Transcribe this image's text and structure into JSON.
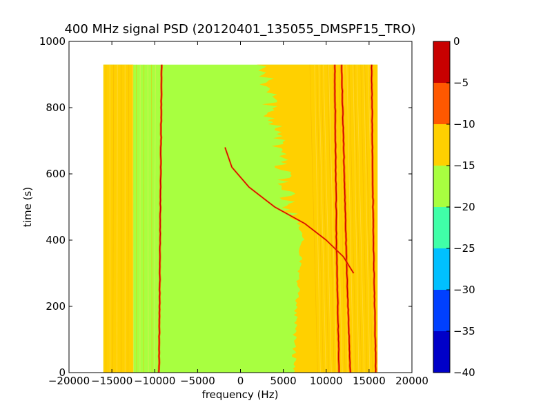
{
  "chart_data": {
    "type": "heatmap",
    "title": "400 MHz signal PSD (20120401_135055_DMSPF15_TRO)",
    "xlabel": "frequency (Hz)",
    "ylabel": "time (s)",
    "xlim": [
      -20000,
      20000
    ],
    "ylim": [
      0,
      1000
    ],
    "xticks": [
      -20000,
      -15000,
      -10000,
      -5000,
      0,
      5000,
      10000,
      15000,
      20000
    ],
    "xtick_labels": [
      "−20000",
      "−15000",
      "−10000",
      "−5000",
      "0",
      "5000",
      "10000",
      "15000",
      "20000"
    ],
    "yticks": [
      0,
      200,
      400,
      600,
      800,
      1000
    ],
    "ytick_labels": [
      "0",
      "200",
      "400",
      "600",
      "800",
      "1000"
    ],
    "data_extent": {
      "freq": [
        -16000,
        16000
      ],
      "time": [
        0,
        930
      ]
    },
    "background_level": "-20 to -15",
    "colorbar": {
      "levels": [
        -40,
        -35,
        -30,
        -25,
        -20,
        -15,
        -10,
        -5,
        0
      ],
      "level_labels": [
        "−40",
        "−35",
        "−30",
        "−25",
        "−20",
        "−15",
        "−10",
        "−5",
        "0"
      ],
      "colors": [
        "#0000c8",
        "#0040ff",
        "#00c0ff",
        "#40ffa8",
        "#a8ff40",
        "#ffd000",
        "#ff5800",
        "#c80000"
      ]
    },
    "features": [
      {
        "name": "band-left",
        "level": "-15 to -10",
        "freq_range": [
          -16000,
          -12500
        ],
        "time_range": [
          0,
          930
        ]
      },
      {
        "name": "band-right",
        "level": "-15 to -10",
        "freq_at_time": [
          [
            0,
            6500
          ],
          [
            200,
            6800
          ],
          [
            400,
            7500
          ],
          [
            600,
            6000
          ],
          [
            800,
            4500
          ],
          [
            930,
            4000
          ]
        ],
        "freq_max": 16000
      },
      {
        "name": "line-left",
        "level": "-5 to 0",
        "freq_at_time": [
          [
            0,
            -9500
          ],
          [
            930,
            -9200
          ]
        ]
      },
      {
        "name": "line-right-1",
        "level": "-5 to 0",
        "freq_at_time": [
          [
            0,
            11500
          ],
          [
            400,
            11200
          ],
          [
            930,
            11000
          ]
        ]
      },
      {
        "name": "line-right-2",
        "level": "-5 to 0",
        "freq_at_time": [
          [
            0,
            12800
          ],
          [
            400,
            12300
          ],
          [
            930,
            11800
          ]
        ]
      },
      {
        "name": "line-right-3",
        "level": "-5 to 0",
        "freq_at_time": [
          [
            0,
            15800
          ],
          [
            400,
            15500
          ],
          [
            930,
            15300
          ]
        ]
      },
      {
        "name": "sweep",
        "level": "-5 to 0",
        "freq_at_time": [
          [
            680,
            -1800
          ],
          [
            620,
            -1000
          ],
          [
            560,
            1000
          ],
          [
            500,
            4000
          ],
          [
            450,
            7500
          ],
          [
            400,
            10000
          ],
          [
            350,
            12000
          ],
          [
            300,
            13200
          ]
        ]
      }
    ]
  }
}
